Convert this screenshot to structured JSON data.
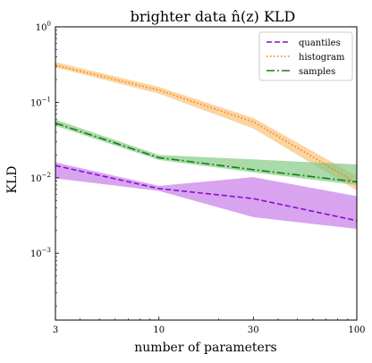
{
  "chart_data": {
    "type": "line",
    "title": "brighter data n̂(z) KLD",
    "xlabel": "number of parameters",
    "ylabel": "KLD",
    "xscale": "log",
    "yscale": "log",
    "xlim": [
      3,
      100
    ],
    "ylim": [
      0.00013,
      1
    ],
    "x": [
      3,
      10,
      30,
      100
    ],
    "xticks": [
      {
        "value": 3,
        "label": "3"
      },
      {
        "value": 10,
        "label": "10"
      },
      {
        "value": 30,
        "label": "30"
      },
      {
        "value": 100,
        "label": "100"
      }
    ],
    "yticks": [
      {
        "value": 0.001,
        "base": "10",
        "exp": "−3"
      },
      {
        "value": 0.01,
        "base": "10",
        "exp": "−2"
      },
      {
        "value": 0.1,
        "base": "10",
        "exp": "−1"
      },
      {
        "value": 1,
        "base": "10",
        "exp": "0"
      }
    ],
    "legend_position": "top-right",
    "grid": false,
    "series": [
      {
        "name": "quantiles",
        "color": "#8a0fd0",
        "fill": "#c87ee8",
        "style": "dashed",
        "values": [
          0.0145,
          0.0072,
          0.0053,
          0.0027
        ],
        "lower": [
          0.0098,
          0.0067,
          0.003,
          0.0021
        ],
        "upper": [
          0.016,
          0.0078,
          0.0102,
          0.0057
        ]
      },
      {
        "name": "histogram",
        "color": "#f08010",
        "fill": "#fbc27a",
        "style": "dotted",
        "values": [
          0.31,
          0.145,
          0.055,
          0.0085
        ],
        "lower": [
          0.29,
          0.13,
          0.045,
          0.0068
        ],
        "upper": [
          0.34,
          0.16,
          0.062,
          0.0105
        ]
      },
      {
        "name": "samples",
        "color": "#108010",
        "fill": "#86c986",
        "style": "dashdot",
        "values": [
          0.053,
          0.0185,
          0.0128,
          0.0088
        ],
        "lower": [
          0.049,
          0.0172,
          0.0118,
          0.008
        ],
        "upper": [
          0.059,
          0.02,
          0.0175,
          0.015
        ]
      }
    ]
  }
}
